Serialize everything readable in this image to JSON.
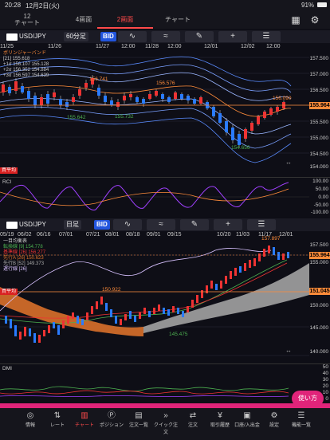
{
  "status": {
    "time": "20:28",
    "date": "12月2日(火)",
    "battery": "91%"
  },
  "tabs": [
    {
      "label": "12\nチャート"
    },
    {
      "label": "4画面"
    },
    {
      "label": "2画面"
    },
    {
      "label": "チャート"
    }
  ],
  "chart1": {
    "symbol": "USD/JPY",
    "timeframe": "60分足",
    "price_side": "BID",
    "dates": [
      "11/25",
      "11/26",
      "11/27",
      "12:00",
      "11/28",
      "12:00",
      "12/01",
      "12/02",
      "12:00"
    ],
    "yaxis": [
      "157.500",
      "157.000",
      "156.500",
      "156.000",
      "155.964",
      "155.500",
      "155.000",
      "154.500",
      "154.000"
    ],
    "current_price": "155.964",
    "labels": {
      "hi1": "156.741",
      "hi2": "156.576",
      "hi3": "156.090",
      "lo1": "155.642",
      "lo2": "155.732",
      "lo3": "154.656"
    },
    "legend": [
      "ボリンジャーバンド",
      "[21] 155.618",
      "+1σ 156.107 155.128",
      "+2σ 156.352 154.884",
      "+3σ 156.597 154.639"
    ],
    "side_label": "買平均",
    "rci_label": "RCI",
    "rci_yaxis": [
      "100.00",
      "50.00",
      "0.00",
      "-50.00",
      "-100.00"
    ]
  },
  "chart2": {
    "symbol": "USD/JPY",
    "timeframe": "日足",
    "price_side": "BID",
    "dates": [
      "05/19",
      "06/02",
      "06/16",
      "07/01",
      "07/21",
      "08/01",
      "08/18",
      "09/01",
      "09/15",
      "10/20",
      "11/03",
      "11/17",
      "12/01"
    ],
    "yaxis": [
      "157.500",
      "155.000",
      "150.000",
      "145.000",
      "140.000"
    ],
    "current_price": "155.964",
    "avg_price": "151.045",
    "labels": {
      "hi": "157.897",
      "mid": "150.922",
      "lo": "145.475"
    },
    "legend": [
      "一目均衡表",
      "転換線 [9] 154.778",
      "基準線 [26] 156.277",
      "先行A [26] 150.623",
      "先行B [52] 149.373",
      "遅行線 [26]"
    ],
    "side_label": "買平均",
    "dmi_label": "DMI",
    "dmi_yaxis": [
      "50",
      "40",
      "30",
      "20",
      "10",
      "0"
    ]
  },
  "trade_button": "使い方",
  "nav": [
    {
      "label": "情報",
      "icon": "globe-icon"
    },
    {
      "label": "レート",
      "icon": "rate-icon"
    },
    {
      "label": "チャート",
      "icon": "candle-icon"
    },
    {
      "label": "ポジション",
      "icon": "position-icon"
    },
    {
      "label": "注文一覧",
      "icon": "orders-icon"
    },
    {
      "label": "クイック注文",
      "icon": "quick-icon"
    },
    {
      "label": "注文",
      "icon": "order-icon"
    },
    {
      "label": "取引履歴",
      "icon": "history-icon"
    },
    {
      "label": "口座/入出金",
      "icon": "account-icon"
    },
    {
      "label": "設定",
      "icon": "gear-icon"
    },
    {
      "label": "機能一覧",
      "icon": "menu-icon"
    }
  ]
}
